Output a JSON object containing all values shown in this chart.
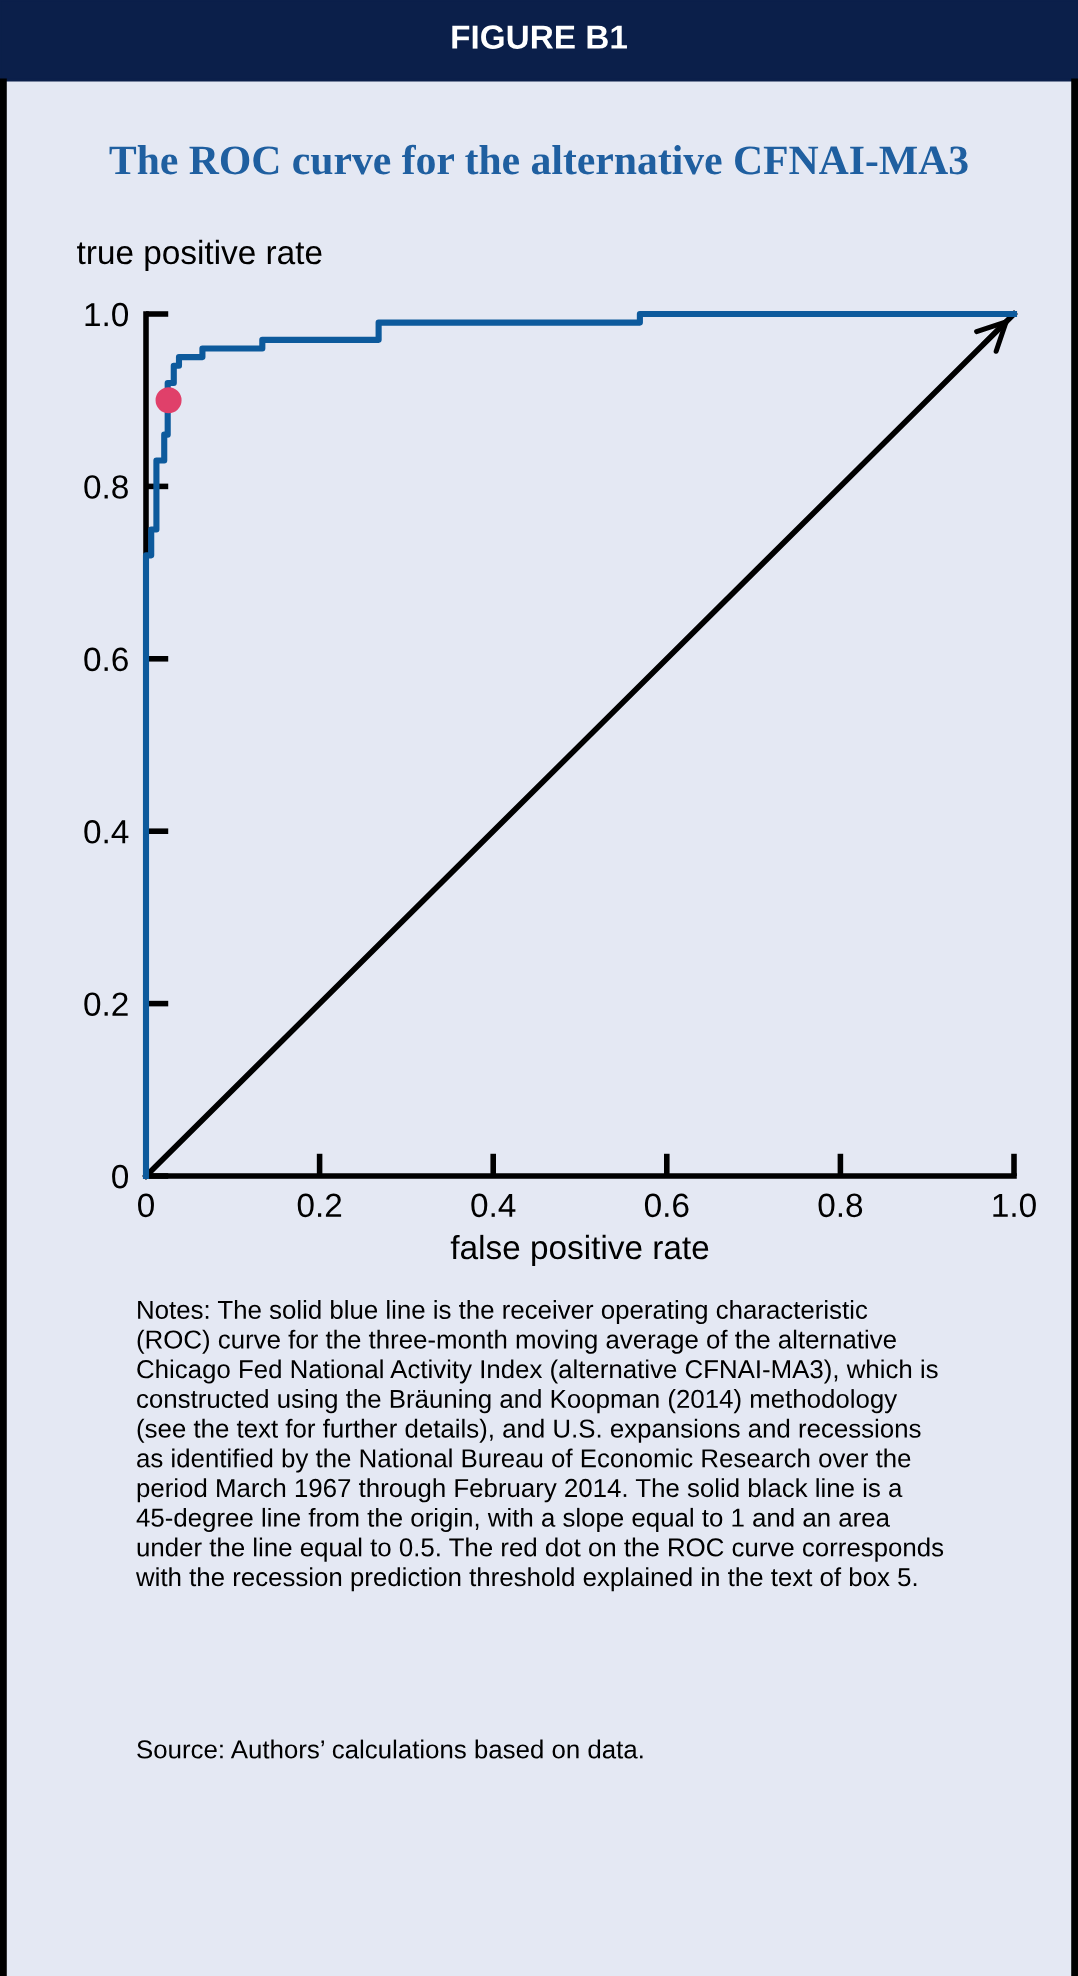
{
  "chart_data": {
    "type": "step",
    "title": "FIGURE B1",
    "subtitle": "The ROC curve for the alternative CFNAI-MA3",
    "xlabel": "false positive rate",
    "ylabel": "true positive rate",
    "xlim": [
      0,
      1.0
    ],
    "ylim": [
      0,
      1.0
    ],
    "xticks": [
      0,
      0.2,
      0.4,
      0.6,
      0.8,
      {
        "value": 1.0,
        "label": "1.0"
      }
    ],
    "yticks": [
      0,
      0.2,
      0.4,
      0.6,
      0.8,
      {
        "value": 1.0,
        "label": "1.0"
      }
    ],
    "grid": false,
    "legend": false,
    "line_style": "solid",
    "series": [
      {
        "color": "#0d5a9c",
        "x": [
          0,
          0,
          0.006,
          0.006,
          0.012,
          0.012,
          0.021,
          0.021,
          0.025,
          0.025,
          0.032,
          0.032,
          0.038,
          0.038,
          0.065,
          0.065,
          0.134,
          0.134,
          0.268,
          0.268,
          0.569,
          0.569,
          1.0
        ],
        "values": [
          0,
          0.72,
          0.72,
          0.75,
          0.75,
          0.83,
          0.83,
          0.86,
          0.86,
          0.92,
          0.92,
          0.94,
          0.94,
          0.95,
          0.95,
          0.96,
          0.96,
          0.97,
          0.97,
          0.99,
          0.99,
          1.0,
          1.0
        ]
      },
      {
        "type": "line",
        "color": "#000000",
        "x": [
          0,
          1.0
        ],
        "values": [
          0,
          1.0
        ]
      },
      {
        "type": "scatter",
        "marker": "circle",
        "color": "#e0406a",
        "x": [
          0.026
        ],
        "values": [
          0.9
        ]
      }
    ],
    "annotations": [
      "Notes: The solid blue line is the receiver operating characteristic (ROC) curve for the three-month moving average of the alternative Chicago Fed National Activity Index (alternative CFNAI-MA3), which is constructed using the Bräuning and Koopman (2014) methodology (see the text for further details), and U.S. expansions and recessions as identified by the National Bureau of Economic Research over the period March 1967 through February 2014. The solid black line is a 45-degree line from the origin, with a slope equal to 1 and an area under the line equal to 0.5. The red dot on the ROC curve corresponds with the recession prediction threshold explained in the text of box 5.",
      "Source: Authors’ calculations based on data."
    ]
  }
}
